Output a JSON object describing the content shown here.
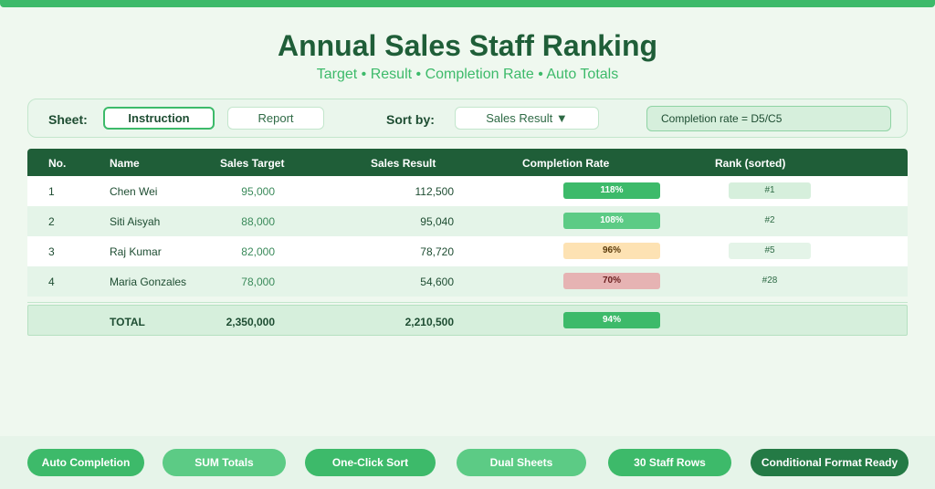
{
  "header": {
    "title": "Annual Sales Staff Ranking",
    "subtitle": "Target • Result • Completion Rate • Auto Totals"
  },
  "controls": {
    "sheet_label": "Sheet:",
    "sheet_tabs": [
      {
        "label": "Instruction",
        "active": true
      },
      {
        "label": "Report",
        "active": false
      }
    ],
    "sort_label": "Sort by:",
    "sort_value": "Sales Result ▼",
    "formula_hint": "Completion rate = D5/C5"
  },
  "table": {
    "columns": [
      "No.",
      "Name",
      "Sales Target",
      "Sales Result",
      "Completion Rate",
      "Rank (sorted)"
    ],
    "rows": [
      {
        "no": "1",
        "name": "Chen Wei",
        "target": "95,000",
        "result": "112,500",
        "rate": "118%",
        "rank": "#1"
      },
      {
        "no": "2",
        "name": "Siti Aisyah",
        "target": "88,000",
        "result": "95,040",
        "rate": "108%",
        "rank": "#2"
      },
      {
        "no": "3",
        "name": "Raj Kumar",
        "target": "82,000",
        "result": "78,720",
        "rate": "96%",
        "rank": "#5"
      },
      {
        "no": "4",
        "name": "Maria Gonzales",
        "target": "78,000",
        "result": "54,600",
        "rate": "70%",
        "rank": "#28"
      }
    ],
    "total": {
      "label": "TOTAL",
      "target": "2,350,000",
      "result": "2,210,500",
      "rate": "94%"
    }
  },
  "colors": {
    "accent": "#3dba6a",
    "dark_green": "#1f5e38",
    "rate_high": "#3dba6a",
    "rate_good": "#5ccb85",
    "rate_warn": "#fde2b3",
    "rate_low": "#e6b3b3",
    "rank_top": "#d6efdc"
  },
  "footer": {
    "chips": [
      {
        "label": "Auto Completion",
        "color": "#3dba6a"
      },
      {
        "label": "SUM Totals",
        "color": "#5ccb85"
      },
      {
        "label": "One-Click Sort",
        "color": "#3dba6a"
      },
      {
        "label": "Dual Sheets",
        "color": "#5ccb85"
      },
      {
        "label": "30 Staff Rows",
        "color": "#3dba6a"
      },
      {
        "label": "Conditional Format Ready",
        "color": "#247a45"
      }
    ]
  }
}
